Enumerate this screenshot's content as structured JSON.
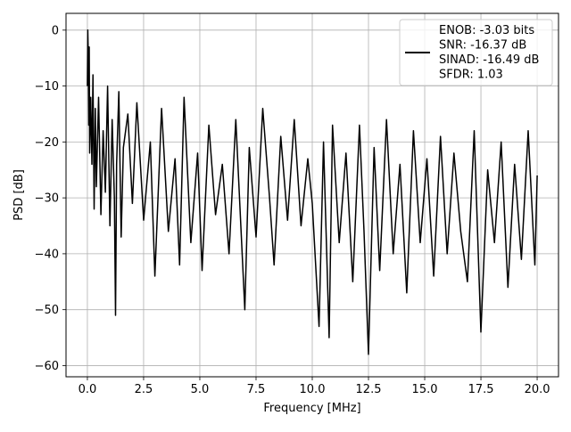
{
  "chart_data": {
    "type": "line",
    "xlabel": "Frequency [MHz]",
    "ylabel": "PSD [dB]",
    "xlim": [
      -0.95,
      20.95
    ],
    "ylim": [
      -62,
      3
    ],
    "xticks": [
      0.0,
      2.5,
      5.0,
      7.5,
      10.0,
      12.5,
      15.0,
      17.5,
      20.0
    ],
    "xtick_labels": [
      "0.0",
      "2.5",
      "5.0",
      "7.5",
      "10.0",
      "12.5",
      "15.0",
      "17.5",
      "20.0"
    ],
    "yticks": [
      0,
      -10,
      -20,
      -30,
      -40,
      -50,
      -60
    ],
    "ytick_labels": [
      "0",
      "−10",
      "−20",
      "−30",
      "−40",
      "−50",
      "−60"
    ],
    "grid": true,
    "legend_position": "top-right",
    "series": [
      {
        "color": "#000000",
        "x": [
          0.0,
          0.02,
          0.04,
          0.06,
          0.08,
          0.1,
          0.15,
          0.2,
          0.25,
          0.3,
          0.35,
          0.4,
          0.5,
          0.6,
          0.7,
          0.8,
          0.9,
          1.0,
          1.1,
          1.2,
          1.25,
          1.3,
          1.4,
          1.5,
          1.6,
          1.8,
          2.0,
          2.2,
          2.5,
          2.8,
          3.0,
          3.3,
          3.6,
          3.9,
          4.1,
          4.3,
          4.6,
          4.9,
          5.1,
          5.4,
          5.7,
          6.0,
          6.3,
          6.6,
          7.0,
          7.2,
          7.5,
          7.8,
          8.1,
          8.3,
          8.6,
          8.9,
          9.2,
          9.5,
          9.8,
          10.0,
          10.3,
          10.5,
          10.75,
          10.9,
          11.2,
          11.5,
          11.8,
          12.1,
          12.3,
          12.5,
          12.75,
          13.0,
          13.3,
          13.6,
          13.9,
          14.2,
          14.5,
          14.8,
          15.1,
          15.4,
          15.7,
          16.0,
          16.3,
          16.6,
          16.9,
          17.2,
          17.5,
          17.8,
          18.1,
          18.4,
          18.7,
          19.0,
          19.3,
          19.6,
          19.9,
          20.0
        ],
        "values": [
          -10,
          0,
          -5,
          -17,
          -3,
          -22,
          -12,
          -24,
          -8,
          -32,
          -14,
          -28,
          -12,
          -33,
          -18,
          -29,
          -10,
          -35,
          -16,
          -30,
          -51,
          -24,
          -11,
          -37,
          -21,
          -15,
          -31,
          -13,
          -34,
          -20,
          -44,
          -14,
          -36,
          -23,
          -42,
          -12,
          -38,
          -22,
          -43,
          -17,
          -33,
          -24,
          -40,
          -16,
          -50,
          -21,
          -37,
          -14,
          -30,
          -42,
          -19,
          -34,
          -16,
          -35,
          -23,
          -31,
          -53,
          -20,
          -55,
          -17,
          -38,
          -22,
          -45,
          -17,
          -36,
          -58,
          -21,
          -43,
          -16,
          -40,
          -24,
          -47,
          -18,
          -38,
          -23,
          -44,
          -19,
          -40,
          -22,
          -36,
          -45,
          -18,
          -54,
          -25,
          -38,
          -20,
          -46,
          -24,
          -41,
          -18,
          -42,
          -26
        ]
      }
    ],
    "legend": [
      "ENOB: -3.03 bits",
      "SNR: -16.37 dB",
      "SINAD: -16.49 dB",
      "SFDR: 1.03"
    ]
  }
}
